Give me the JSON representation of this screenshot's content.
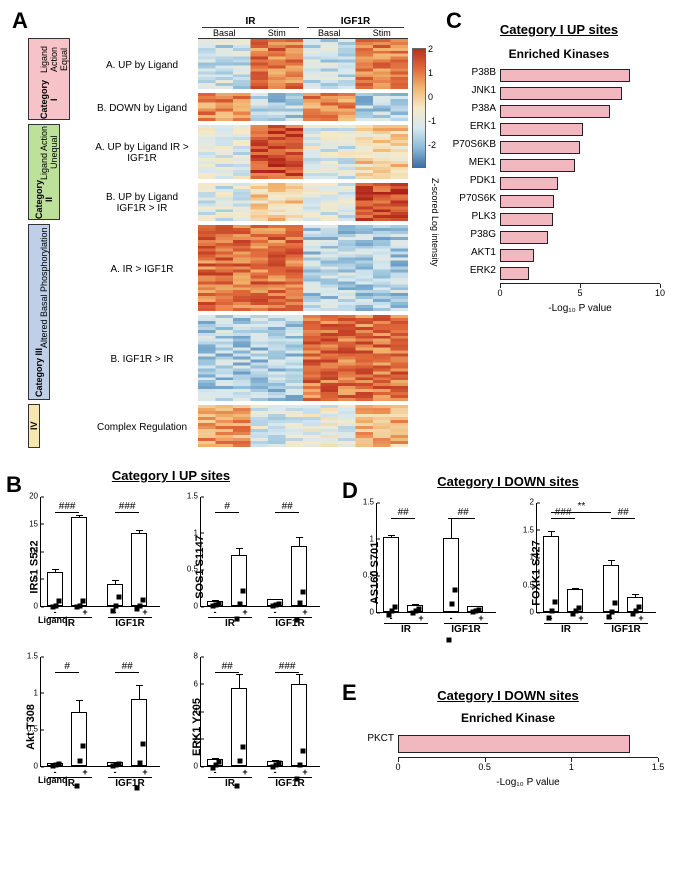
{
  "panelA": {
    "header": {
      "groups": [
        "IR",
        "IGF1R"
      ],
      "subs": [
        "Basal",
        "Stim",
        "Basal",
        "Stim"
      ]
    },
    "categories": [
      {
        "name": "Category I",
        "sub": "Ligand Action Equal",
        "color": "#f6c3c8",
        "height": 82,
        "rows": [
          {
            "label": "A. UP by Ligand",
            "h": 50
          },
          {
            "label": "B.   DOWN by Ligand",
            "h": 28
          }
        ]
      },
      {
        "name": "Category II",
        "sub": "Ligand Action Unequal",
        "color": "#bde09a",
        "height": 96,
        "rows": [
          {
            "label": "A. UP by Ligand IR > IGF1R",
            "h": 54
          },
          {
            "label": "B. UP by Ligand IGF1R > IR",
            "h": 38
          }
        ]
      },
      {
        "name": "Category III",
        "sub": "Altered Basal Phosphorylation",
        "color": "#bfcfe8",
        "height": 176,
        "rows": [
          {
            "label": "A.     IR > IGF1R",
            "h": 86
          },
          {
            "label": "B.    IGF1R > IR",
            "h": 86
          }
        ]
      },
      {
        "name": "IV",
        "sub": "",
        "color": "#f6e7b2",
        "height": 44,
        "rows": [
          {
            "label": "Complex Regulation",
            "h": 42
          }
        ]
      }
    ],
    "colorbar": {
      "min": -2,
      "max": 2,
      "step": 1,
      "label": "Z-scored Log intensity",
      "stops": [
        "#b83020",
        "#e06a3a",
        "#f2b670",
        "#f5e9c8",
        "#d7e8ef",
        "#8fbcd8",
        "#3b6fa8"
      ]
    }
  },
  "panelC": {
    "title": "Category I UP sites",
    "subtitle": "Enriched Kinases",
    "xlabel": "-Log₁₀ P value",
    "xlim": [
      0,
      10
    ],
    "xtick_step": 5,
    "bar_color": "#f2b8c0",
    "kinases": [
      {
        "name": "P38B",
        "value": 8.1
      },
      {
        "name": "JNK1",
        "value": 7.6
      },
      {
        "name": "P38A",
        "value": 6.9
      },
      {
        "name": "ERK1",
        "value": 5.2
      },
      {
        "name": "P70S6KB",
        "value": 5.0
      },
      {
        "name": "MEK1",
        "value": 4.7
      },
      {
        "name": "PDK1",
        "value": 3.6
      },
      {
        "name": "P70S6K",
        "value": 3.4
      },
      {
        "name": "PLK3",
        "value": 3.3
      },
      {
        "name": "P38G",
        "value": 3.0
      },
      {
        "name": "AKT1",
        "value": 2.1
      },
      {
        "name": "ERK2",
        "value": 1.8
      }
    ]
  },
  "panelB": {
    "title": "Category I UP sites",
    "xrow_ligand": [
      "-",
      "+",
      "-",
      "+"
    ],
    "xrow_group": [
      "IR",
      "IGF1R"
    ],
    "ligand_label": "Ligand",
    "charts": [
      {
        "ylabel": "IRS1 S522",
        "ylim": [
          0,
          20
        ],
        "yticks": [
          0,
          5,
          10,
          15,
          20
        ],
        "bars": [
          {
            "mean": 6.2,
            "err": 0.7,
            "pts": [
              5.8,
              6.0,
              7.0
            ]
          },
          {
            "mean": 16.1,
            "err": 0.6,
            "pts": [
              15.8,
              16.0,
              16.8
            ]
          },
          {
            "mean": 4.0,
            "err": 1.0,
            "pts": [
              3.0,
              3.8,
              5.5
            ]
          },
          {
            "mean": 13.2,
            "err": 0.8,
            "pts": [
              12.5,
              13.0,
              14.2
            ]
          }
        ],
        "sigs": [
          {
            "span": [
              0,
              1
            ],
            "label": "###"
          },
          {
            "span": [
              2,
              3
            ],
            "label": "###"
          }
        ]
      },
      {
        "ylabel": "SOS1 S1147",
        "ylim": [
          0,
          1.5
        ],
        "yticks": [
          0,
          0.5,
          1.0,
          1.5
        ],
        "bars": [
          {
            "mean": 0.07,
            "err": 0.02,
            "pts": [
              0.05,
              0.07,
              0.09
            ]
          },
          {
            "mean": 0.69,
            "err": 0.12,
            "pts": [
              0.5,
              0.7,
              0.88
            ]
          },
          {
            "mean": 0.09,
            "err": 0.02,
            "pts": [
              0.07,
              0.09,
              0.11
            ]
          },
          {
            "mean": 0.82,
            "err": 0.14,
            "pts": [
              0.62,
              0.85,
              1.0
            ]
          }
        ],
        "sigs": [
          {
            "span": [
              0,
              1
            ],
            "label": "#"
          },
          {
            "span": [
              2,
              3
            ],
            "label": "##"
          }
        ]
      },
      {
        "ylabel": "Akt T308",
        "ylim": [
          0,
          1.5
        ],
        "yticks": [
          0,
          0.5,
          1.0,
          1.5
        ],
        "bars": [
          {
            "mean": 0.04,
            "err": 0.02,
            "pts": [
              0.02,
              0.04,
              0.06
            ]
          },
          {
            "mean": 0.74,
            "err": 0.18,
            "pts": [
              0.45,
              0.8,
              1.0
            ]
          },
          {
            "mean": 0.05,
            "err": 0.02,
            "pts": [
              0.03,
              0.05,
              0.07
            ]
          },
          {
            "mean": 0.92,
            "err": 0.2,
            "pts": [
              0.6,
              0.95,
              1.2
            ]
          }
        ],
        "sigs": [
          {
            "span": [
              0,
              1
            ],
            "label": "#"
          },
          {
            "span": [
              2,
              3
            ],
            "label": "##"
          }
        ]
      },
      {
        "ylabel": "ERK1 Y205",
        "ylim": [
          0,
          8
        ],
        "yticks": [
          0,
          2,
          4,
          6,
          8
        ],
        "bars": [
          {
            "mean": 0.5,
            "err": 0.15,
            "pts": [
              0.3,
              0.5,
              0.7
            ]
          },
          {
            "mean": 5.7,
            "err": 1.1,
            "pts": [
              4.2,
              6.0,
              7.0
            ]
          },
          {
            "mean": 0.4,
            "err": 0.12,
            "pts": [
              0.25,
              0.4,
              0.55
            ]
          },
          {
            "mean": 6.0,
            "err": 0.8,
            "pts": [
              5.0,
              6.0,
              7.0
            ]
          }
        ],
        "sigs": [
          {
            "span": [
              0,
              1
            ],
            "label": "##"
          },
          {
            "span": [
              2,
              3
            ],
            "label": "###"
          }
        ]
      }
    ]
  },
  "panelD": {
    "title": "Category I DOWN sites",
    "xrow_ligand": [
      "-",
      "+",
      "-",
      "+"
    ],
    "xrow_group": [
      "IR",
      "IGF1R"
    ],
    "charts": [
      {
        "ylabel": "AS160 S701",
        "ylim": [
          0,
          1.5
        ],
        "yticks": [
          0,
          0.5,
          1.0,
          1.5
        ],
        "bars": [
          {
            "mean": 1.02,
            "err": 0.05,
            "pts": [
              0.97,
              1.02,
              1.07
            ]
          },
          {
            "mean": 0.09,
            "err": 0.03,
            "pts": [
              0.06,
              0.09,
              0.12
            ]
          },
          {
            "mean": 1.01,
            "err": 0.28,
            "pts": [
              0.62,
              1.1,
              1.3
            ]
          },
          {
            "mean": 0.08,
            "err": 0.02,
            "pts": [
              0.06,
              0.08,
              0.1
            ]
          }
        ],
        "sigs": [
          {
            "span": [
              0,
              1
            ],
            "label": "##"
          },
          {
            "span": [
              2,
              3
            ],
            "label": "##"
          }
        ]
      },
      {
        "ylabel": "FOXK1 S427",
        "ylim": [
          0,
          2.0
        ],
        "yticks": [
          0,
          0.5,
          1.0,
          1.5,
          2.0
        ],
        "bars": [
          {
            "mean": 1.38,
            "err": 0.12,
            "pts": [
              1.25,
              1.38,
              1.55
            ]
          },
          {
            "mean": 0.41,
            "err": 0.05,
            "pts": [
              0.36,
              0.41,
              0.46
            ]
          },
          {
            "mean": 0.86,
            "err": 0.1,
            "pts": [
              0.75,
              0.85,
              1.0
            ]
          },
          {
            "mean": 0.28,
            "err": 0.06,
            "pts": [
              0.22,
              0.28,
              0.35
            ]
          }
        ],
        "sigs": [
          {
            "span": [
              0,
              1
            ],
            "label": "###"
          },
          {
            "span": [
              2,
              3
            ],
            "label": "##"
          },
          {
            "span": [
              0,
              2
            ],
            "label": "**",
            "top": true
          }
        ]
      }
    ]
  },
  "panelE": {
    "title": "Category I DOWN sites",
    "subtitle": "Enriched Kinase",
    "xlabel": "-Log₁₀ P value",
    "xlim": [
      0,
      1.5
    ],
    "xticks": [
      0,
      0.5,
      1.0,
      1.5
    ],
    "bar_color": "#f2b8c0",
    "kinases": [
      {
        "name": "PKCT",
        "value": 1.34
      }
    ]
  }
}
